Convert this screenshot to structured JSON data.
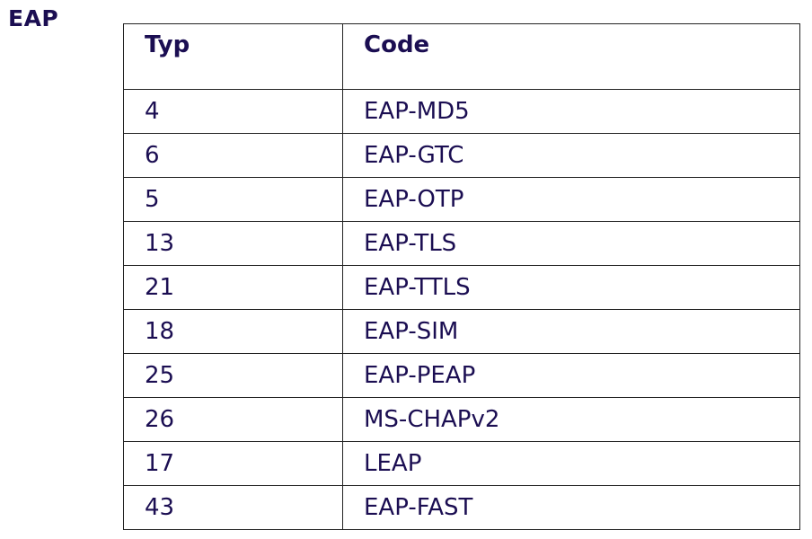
{
  "title": "EAP",
  "table": {
    "headers": [
      "Typ",
      "Code"
    ],
    "rows": [
      [
        "4",
        "EAP-MD5"
      ],
      [
        "6",
        "EAP-GTC"
      ],
      [
        "5",
        "EAP-OTP"
      ],
      [
        "13",
        "EAP-TLS"
      ],
      [
        "21",
        "EAP-TTLS"
      ],
      [
        "18",
        "EAP-SIM"
      ],
      [
        "25",
        "EAP-PEAP"
      ],
      [
        "26",
        "MS-CHAPv2"
      ],
      [
        "17",
        "LEAP"
      ],
      [
        "43",
        "EAP-FAST"
      ]
    ]
  },
  "colors": {
    "text": "#1b0e52",
    "border": "#222222"
  }
}
